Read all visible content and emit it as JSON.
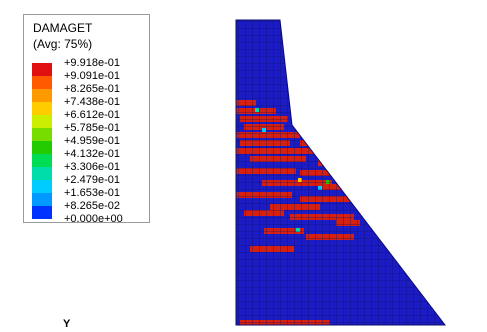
{
  "legend": {
    "title": "DAMAGET",
    "subtitle": "(Avg: 75%)",
    "ticks": [
      "+9.918e-01",
      "+9.091e-01",
      "+8.265e-01",
      "+7.438e-01",
      "+6.612e-01",
      "+5.785e-01",
      "+4.959e-01",
      "+4.132e-01",
      "+3.306e-01",
      "+2.479e-01",
      "+1.653e-01",
      "+8.265e-02",
      "+0.000e+00"
    ],
    "colors": [
      "#e01010",
      "#ff5a00",
      "#ff9900",
      "#ffcc00",
      "#ccee00",
      "#77dd00",
      "#22cc00",
      "#00dd55",
      "#00ddaa",
      "#00ccff",
      "#0099ff",
      "#0033ff"
    ]
  },
  "axis": {
    "y_label": "Y"
  },
  "model": {
    "base_color": "#1c1cc4",
    "damage_color": "#d62010",
    "mesh_color": "#0c0c6a"
  }
}
